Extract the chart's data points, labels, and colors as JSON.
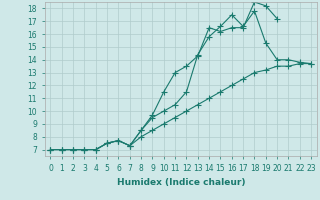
{
  "xlabel": "Humidex (Indice chaleur)",
  "bg_color": "#cfe8e8",
  "line_color": "#1a7a6e",
  "grid_color": "#b0cccc",
  "xlim": [
    -0.5,
    23.5
  ],
  "ylim": [
    6.5,
    18.5
  ],
  "xticks": [
    0,
    1,
    2,
    3,
    4,
    5,
    6,
    7,
    8,
    9,
    10,
    11,
    12,
    13,
    14,
    15,
    16,
    17,
    18,
    19,
    20,
    21,
    22,
    23
  ],
  "yticks": [
    7,
    8,
    9,
    10,
    11,
    12,
    13,
    14,
    15,
    16,
    17,
    18
  ],
  "line1_x": [
    0,
    1,
    2,
    3,
    4,
    5,
    6,
    7,
    8,
    9,
    10,
    11,
    12,
    13,
    14,
    15,
    16,
    17,
    18,
    19,
    20
  ],
  "line1_y": [
    7.0,
    7.0,
    7.0,
    7.0,
    7.0,
    7.5,
    7.7,
    7.3,
    8.5,
    9.7,
    11.5,
    13.0,
    13.5,
    14.3,
    16.5,
    16.2,
    16.5,
    16.5,
    18.5,
    18.2,
    17.2
  ],
  "line2_x": [
    0,
    1,
    2,
    3,
    4,
    5,
    6,
    7,
    8,
    9,
    10,
    11,
    12,
    13,
    14,
    15,
    16,
    17,
    18,
    19,
    20,
    21,
    22,
    23
  ],
  "line2_y": [
    7.0,
    7.0,
    7.0,
    7.0,
    7.0,
    7.5,
    7.7,
    7.3,
    8.5,
    9.5,
    10.0,
    10.5,
    11.5,
    14.4,
    15.8,
    16.6,
    17.5,
    16.6,
    17.8,
    15.3,
    14.0,
    14.0,
    13.8,
    13.7
  ],
  "line3_x": [
    0,
    1,
    2,
    3,
    4,
    5,
    6,
    7,
    8,
    9,
    10,
    11,
    12,
    13,
    14,
    15,
    16,
    17,
    18,
    19,
    20,
    21,
    22,
    23
  ],
  "line3_y": [
    7.0,
    7.0,
    7.0,
    7.0,
    7.0,
    7.5,
    7.7,
    7.3,
    8.0,
    8.5,
    9.0,
    9.5,
    10.0,
    10.5,
    11.0,
    11.5,
    12.0,
    12.5,
    13.0,
    13.2,
    13.5,
    13.5,
    13.7,
    13.7
  ]
}
